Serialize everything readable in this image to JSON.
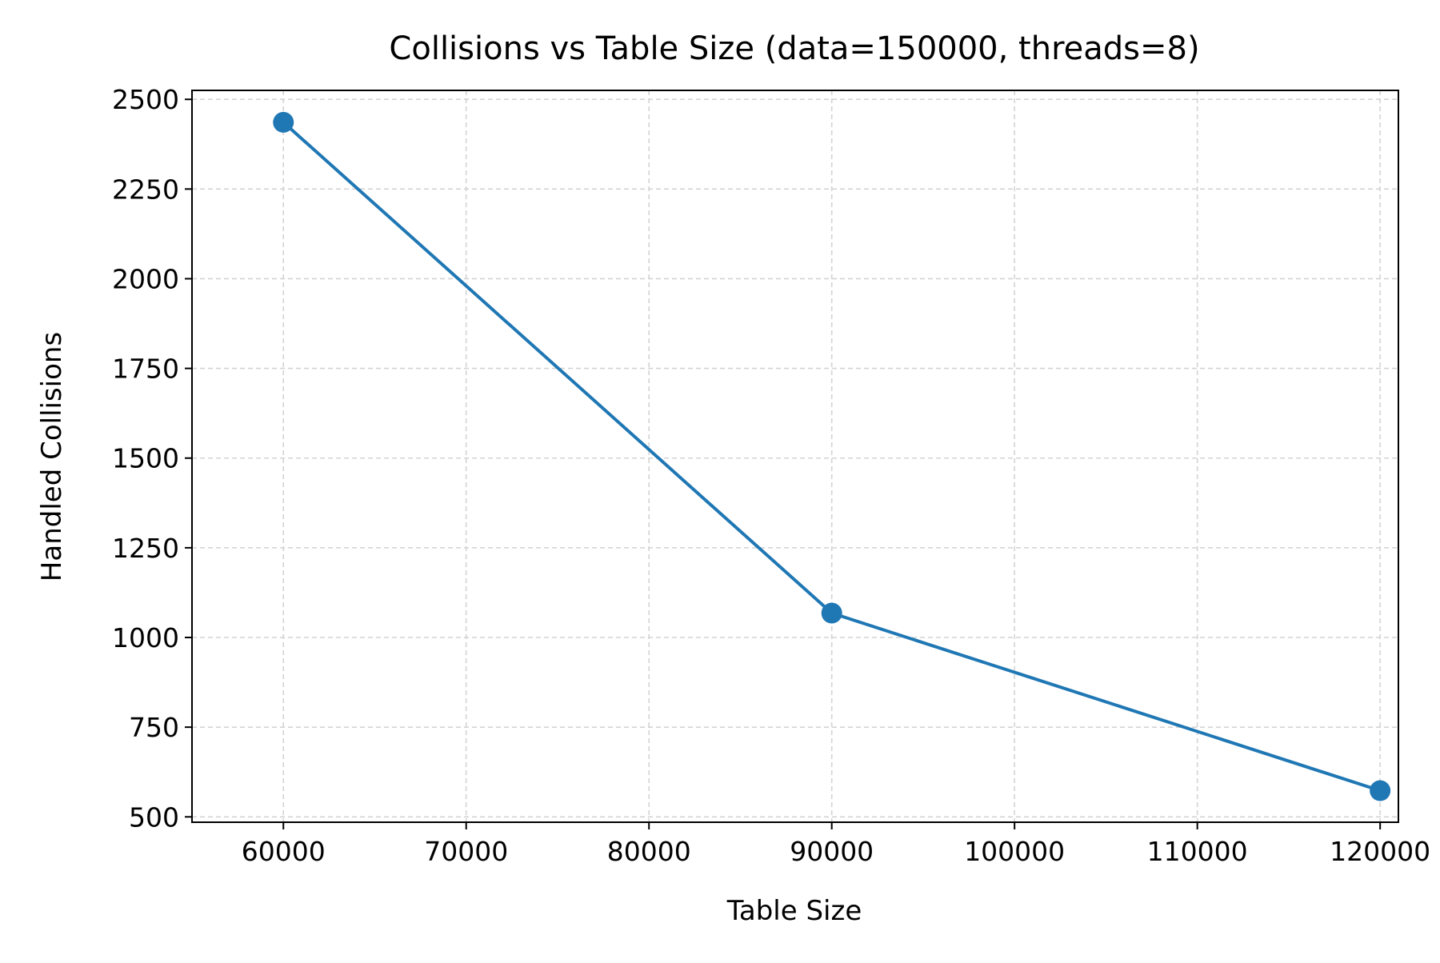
{
  "chart_data": {
    "type": "line",
    "title": "Collisions vs Table Size  (data=150000, threads=8)",
    "xlabel": "Table Size",
    "ylabel": "Handled Collisions",
    "xlim": [
      55000,
      121000
    ],
    "ylim": [
      485,
      2525
    ],
    "x_ticks": [
      60000,
      70000,
      80000,
      90000,
      100000,
      110000,
      120000
    ],
    "y_ticks": [
      500,
      750,
      1000,
      1250,
      1500,
      1750,
      2000,
      2250,
      2500
    ],
    "grid": true,
    "grid_style": "dashed",
    "legend": false,
    "series": [
      {
        "color": "#1f77b4",
        "marker": "circle",
        "x": [
          60000,
          90000,
          120000
        ],
        "y": [
          2436,
          1068,
          573
        ]
      }
    ]
  }
}
